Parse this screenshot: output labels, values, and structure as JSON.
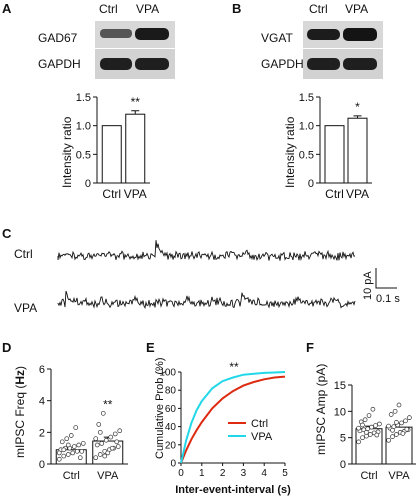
{
  "panels": {
    "A": {
      "label": "A",
      "lanes": [
        "Ctrl",
        "VPA"
      ],
      "blots": [
        "GAD67",
        "GAPDH"
      ],
      "chart_data": {
        "type": "bar",
        "categories": [
          "Ctrl",
          "VPA"
        ],
        "values": [
          1.0,
          1.2
        ],
        "errors": [
          0,
          0.06
        ],
        "significance": [
          "",
          "**"
        ],
        "ylabel": "Intensity ratio",
        "ylim": [
          0,
          1.5
        ],
        "yticks": [
          "0",
          "0.5",
          "1.0",
          "1.5"
        ],
        "bar_color": "#ffffff"
      }
    },
    "B": {
      "label": "B",
      "lanes": [
        "Ctrl",
        "VPA"
      ],
      "blots": [
        "VGAT",
        "GAPDH"
      ],
      "chart_data": {
        "type": "bar",
        "categories": [
          "Ctrl",
          "VPA"
        ],
        "values": [
          1.0,
          1.13
        ],
        "errors": [
          0,
          0.04
        ],
        "significance": [
          "",
          "*"
        ],
        "ylabel": "Intensity ratio",
        "ylim": [
          0,
          1.5
        ],
        "yticks": [
          "0",
          "0.5",
          "1.0",
          "1.5"
        ],
        "bar_color": "#ffffff"
      }
    },
    "C": {
      "label": "C",
      "traces": [
        "Ctrl",
        "VPA"
      ],
      "scale_y": "10 pA",
      "scale_x": "0.1 s"
    },
    "D": {
      "label": "D",
      "chart_data": {
        "type": "bar",
        "categories": [
          "Ctrl",
          "VPA"
        ],
        "values": [
          0.9,
          1.45
        ],
        "errors": [
          0.15,
          0.25
        ],
        "significance": [
          "",
          "**"
        ],
        "ylabel_main": "mIPSC Freq (",
        "ylabel_unit": "Hz",
        "ylabel_close": ")",
        "ylim": [
          0,
          6
        ],
        "yticks": [
          "0",
          "2",
          "4",
          "6"
        ],
        "points": {
          "Ctrl": [
            0.3,
            0.5,
            0.6,
            0.7,
            0.8,
            0.8,
            0.9,
            1.0,
            1.0,
            1.1,
            1.2,
            1.3,
            1.4,
            1.6,
            1.8,
            2.3,
            0.4,
            0.7,
            0.9,
            1.2
          ],
          "VPA": [
            0.4,
            0.6,
            0.8,
            0.9,
            1.0,
            1.1,
            1.2,
            1.3,
            1.5,
            1.7,
            1.9,
            2.1,
            2.5,
            3.2,
            0.7,
            1.0,
            1.4,
            1.6,
            2.0,
            0.5
          ]
        }
      }
    },
    "E": {
      "label": "E",
      "chart_data": {
        "type": "line",
        "xlabel": "Inter-event-interval (s)",
        "ylabel": "Cumulative Prob (%)",
        "xlim": [
          0,
          5
        ],
        "ylim": [
          0,
          100
        ],
        "xticks": [
          "0",
          "1",
          "2",
          "3",
          "4",
          "5"
        ],
        "yticks": [
          "0",
          "20",
          "40",
          "60",
          "80",
          "100"
        ],
        "significance": "**",
        "series": [
          {
            "name": "Ctrl",
            "color": "#dd2a10",
            "x": [
              0,
              0.25,
              0.5,
              0.75,
              1.0,
              1.5,
              2.0,
              2.5,
              3.0,
              3.5,
              4.0,
              4.5,
              5.0
            ],
            "y": [
              0,
              14,
              26,
              36,
              45,
              60,
              71,
              79,
              85,
              89,
              92,
              94,
              95
            ]
          },
          {
            "name": "VPA",
            "color": "#22d8e8",
            "x": [
              0,
              0.25,
              0.5,
              0.75,
              1.0,
              1.5,
              2.0,
              2.5,
              3.0,
              3.5,
              4.0,
              4.5,
              5.0
            ],
            "y": [
              0,
              25,
              44,
              58,
              68,
              82,
              90,
              94,
              97,
              98,
              99,
              99.5,
              100
            ]
          }
        ]
      }
    },
    "F": {
      "label": "F",
      "chart_data": {
        "type": "bar",
        "categories": [
          "Ctrl",
          "VPA"
        ],
        "values": [
          6.7,
          7.0
        ],
        "errors": [
          0.5,
          0.6
        ],
        "ylabel": "mIPSC Amp (pA)",
        "ylim": [
          0,
          15
        ],
        "yticks": [
          "0",
          "5",
          "10",
          "15"
        ],
        "points": {
          "Ctrl": [
            4.2,
            5.0,
            5.3,
            5.6,
            5.9,
            6.1,
            6.3,
            6.5,
            6.7,
            7.0,
            7.3,
            7.6,
            8.0,
            8.4,
            9.2,
            10.4,
            5.5,
            6.8,
            7.4,
            6.0
          ],
          "VPA": [
            4.5,
            5.2,
            5.6,
            6.0,
            6.2,
            6.5,
            6.8,
            7.1,
            7.4,
            7.8,
            8.2,
            8.8,
            9.4,
            10.0,
            11.2,
            5.8,
            6.6,
            7.2,
            6.4,
            7.9
          ]
        }
      }
    }
  }
}
